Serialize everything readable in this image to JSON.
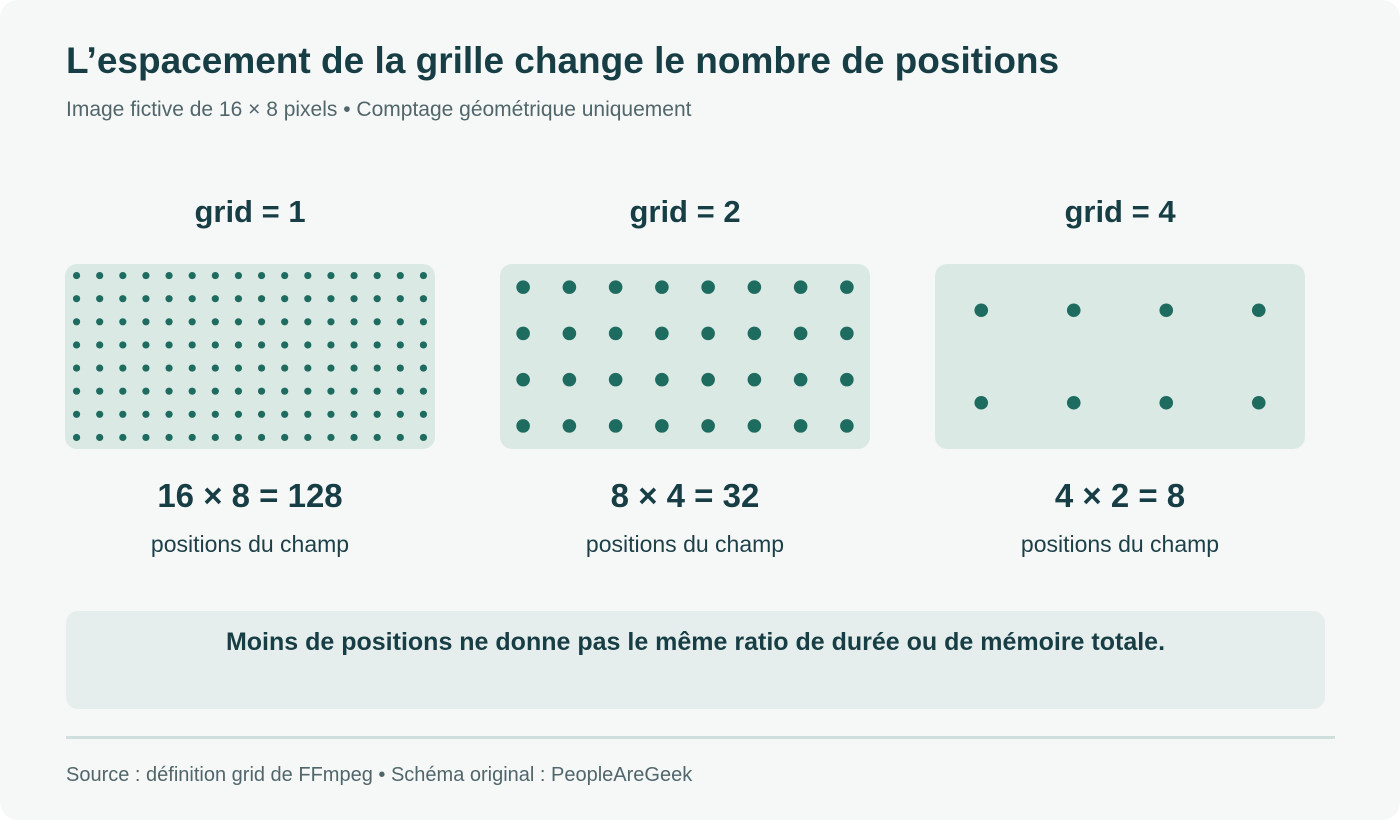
{
  "title": "L’espacement de la grille change le nombre de positions",
  "subtitle": "Image fictive de 16 × 8 pixels • Comptage géométrique uniquement",
  "colors": {
    "dot": "#1e6b60",
    "box": "#dbe9e4",
    "text": "#173d45"
  },
  "panels": [
    {
      "label": "grid = 1",
      "cols": 16,
      "rows": 8,
      "formula": "16 × 8 = 128",
      "caption": "positions du champ"
    },
    {
      "label": "grid = 2",
      "cols": 8,
      "rows": 4,
      "formula": "8 × 4 = 32",
      "caption": "positions du champ"
    },
    {
      "label": "grid = 4",
      "cols": 4,
      "rows": 2,
      "formula": "4 × 2 = 8",
      "caption": "positions du champ"
    }
  ],
  "note": "Moins de positions ne donne pas le même ratio de durée ou de mémoire totale.",
  "source": "Source : définition grid de FFmpeg • Schéma original : PeopleAreGeek"
}
